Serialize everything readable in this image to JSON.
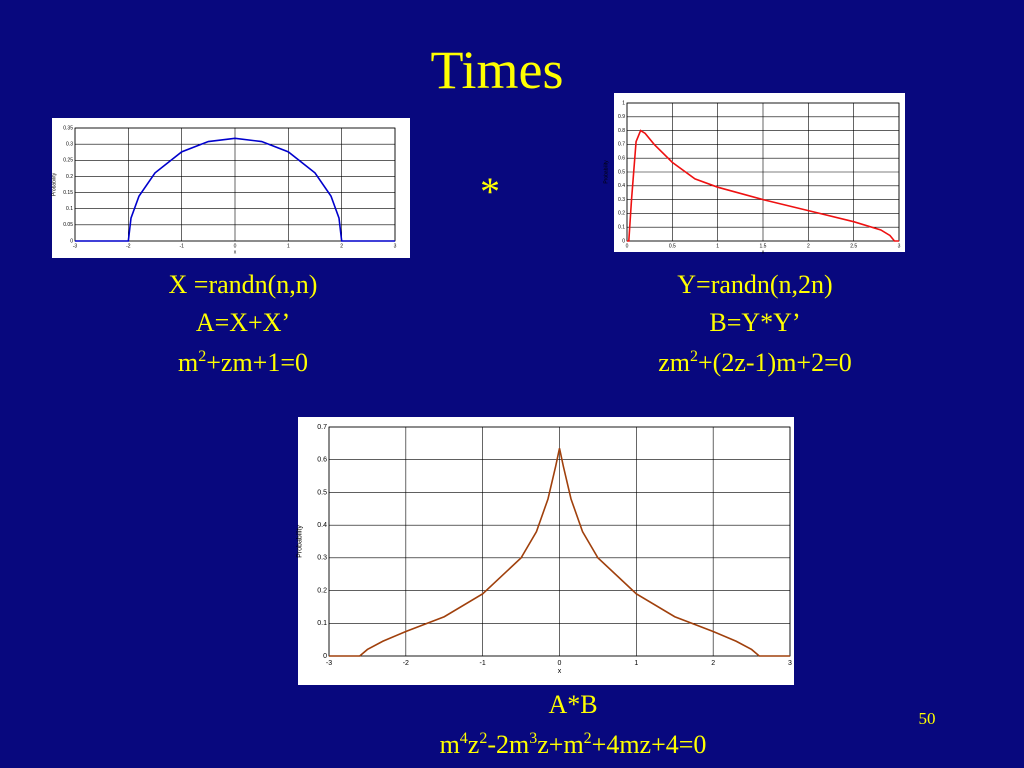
{
  "title": "Times",
  "operator": "*",
  "page_number": "50",
  "captions": [
    {
      "lines": [
        [
          {
            "text": "X =randn(n,n)"
          }
        ],
        [
          {
            "text": "A=X+X’"
          }
        ],
        [
          {
            "text": "m"
          },
          {
            "sup": "2"
          },
          {
            "text": "+zm+1=0"
          }
        ]
      ]
    },
    {
      "lines": [
        [
          {
            "text": "Y=randn(n,2n)"
          }
        ],
        [
          {
            "text": "B=Y*Y’"
          }
        ],
        [
          {
            "text": "zm"
          },
          {
            "sup": "2"
          },
          {
            "text": "+(2z-1)m+2=0"
          }
        ]
      ]
    },
    {
      "lines": [
        [
          {
            "text": "A*B"
          }
        ],
        [
          {
            "text": "m"
          },
          {
            "sup": "4"
          },
          {
            "text": "z"
          },
          {
            "sup": "2"
          },
          {
            "text": "-2m"
          },
          {
            "sup": "3"
          },
          {
            "text": "z+m"
          },
          {
            "sup": "2"
          },
          {
            "text": "+4mz+4=0"
          }
        ]
      ]
    }
  ],
  "chart_data": [
    {
      "type": "line",
      "xlabel": "x",
      "ylabel": "Probability",
      "color": "#0000cc",
      "grid": true,
      "x": [
        -3,
        -2.5,
        -2,
        -2,
        -1.95,
        -1.8,
        -1.5,
        -1,
        -0.5,
        0,
        0.5,
        1,
        1.5,
        1.8,
        1.95,
        2,
        2,
        2.5,
        3
      ],
      "values": [
        0,
        0,
        0,
        0,
        0.071,
        0.139,
        0.211,
        0.276,
        0.308,
        0.318,
        0.308,
        0.276,
        0.211,
        0.139,
        0.071,
        0,
        0,
        0,
        0
      ],
      "xlim": [
        -3,
        3
      ],
      "ylim": [
        0,
        0.35
      ],
      "xticks": [
        -3,
        -2,
        -1,
        0,
        1,
        2,
        3
      ],
      "yticks": [
        0,
        0.05,
        0.1,
        0.15,
        0.2,
        0.25,
        0.3,
        0.35
      ]
    },
    {
      "type": "line",
      "xlabel": "x",
      "ylabel": "Probability",
      "color": "#ee1111",
      "grid": true,
      "x": [
        0,
        0.02,
        0.05,
        0.1,
        0.15,
        0.2,
        0.3,
        0.5,
        0.75,
        1,
        1.5,
        2,
        2.5,
        2.8,
        2.9,
        2.95,
        3
      ],
      "values": [
        0,
        0,
        0.3,
        0.72,
        0.8,
        0.78,
        0.7,
        0.57,
        0.45,
        0.39,
        0.3,
        0.22,
        0.14,
        0.08,
        0.04,
        0,
        0
      ],
      "xlim": [
        0,
        3
      ],
      "ylim": [
        0,
        1
      ],
      "xticks": [
        0,
        0.5,
        1,
        1.5,
        2,
        2.5,
        3
      ],
      "yticks": [
        0,
        0.1,
        0.2,
        0.3,
        0.4,
        0.5,
        0.6,
        0.7,
        0.8,
        0.9,
        1
      ]
    },
    {
      "type": "line",
      "xlabel": "x",
      "ylabel": "Probability",
      "color": "#a0400c",
      "grid": true,
      "x": [
        -3,
        -2.6,
        -2.5,
        -2.3,
        -2,
        -1.5,
        -1,
        -0.5,
        -0.3,
        -0.15,
        -0.05,
        0,
        0.05,
        0.15,
        0.3,
        0.5,
        1,
        1.5,
        2,
        2.3,
        2.5,
        2.6,
        3
      ],
      "values": [
        0,
        0,
        0.02,
        0.045,
        0.075,
        0.12,
        0.19,
        0.3,
        0.38,
        0.48,
        0.58,
        0.635,
        0.58,
        0.48,
        0.38,
        0.3,
        0.19,
        0.12,
        0.075,
        0.045,
        0.02,
        0,
        0
      ],
      "xlim": [
        -3,
        3
      ],
      "ylim": [
        0,
        0.7
      ],
      "xticks": [
        -3,
        -2,
        -1,
        0,
        1,
        2,
        3
      ],
      "yticks": [
        0,
        0.1,
        0.2,
        0.3,
        0.4,
        0.5,
        0.6,
        0.7
      ]
    }
  ]
}
